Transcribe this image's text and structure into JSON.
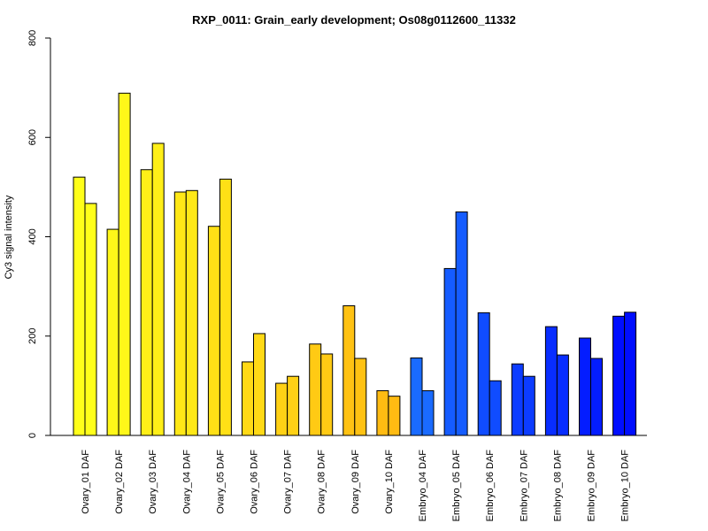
{
  "chart_data": {
    "type": "bar",
    "title": "RXP_0011: Grain_early development; Os08g0112600_11332",
    "ylabel": "Cy3 signal intensity",
    "xlabel": "",
    "ylim": [
      0,
      800
    ],
    "yticks": [
      0,
      200,
      400,
      600,
      800
    ],
    "grid": false,
    "categories": [
      "Ovary_01 DAF",
      "Ovary_02 DAF",
      "Ovary_03 DAF",
      "Ovary_04 DAF",
      "Ovary_05 DAF",
      "Ovary_06 DAF",
      "Ovary_07 DAF",
      "Ovary_08 DAF",
      "Ovary_09 DAF",
      "Ovary_10 DAF",
      "Embryo_04 DAF",
      "Embryo_05 DAF",
      "Embryo_06 DAF",
      "Embryo_07 DAF",
      "Embryo_08 DAF",
      "Embryo_09 DAF",
      "Embryo_10 DAF"
    ],
    "series": [
      {
        "values": [
          520,
          415,
          535,
          490,
          421,
          148,
          105,
          184,
          261,
          90,
          156,
          336,
          247,
          144,
          219,
          196,
          240
        ]
      },
      {
        "values": [
          467,
          689,
          588,
          493,
          516,
          205,
          119,
          164,
          155,
          79,
          90,
          450,
          110,
          119,
          162,
          155,
          248
        ]
      }
    ],
    "colors": [
      "#FFFF1A",
      "#FFF719",
      "#FFEF18",
      "#FFE817",
      "#FFE016",
      "#FFD916",
      "#FFD115",
      "#FFCA14",
      "#FFC213",
      "#FFBB12",
      "#1A6BFF",
      "#155CFF",
      "#104CFF",
      "#0C3CFF",
      "#082DFF",
      "#041DFF",
      "#000EFF"
    ]
  }
}
